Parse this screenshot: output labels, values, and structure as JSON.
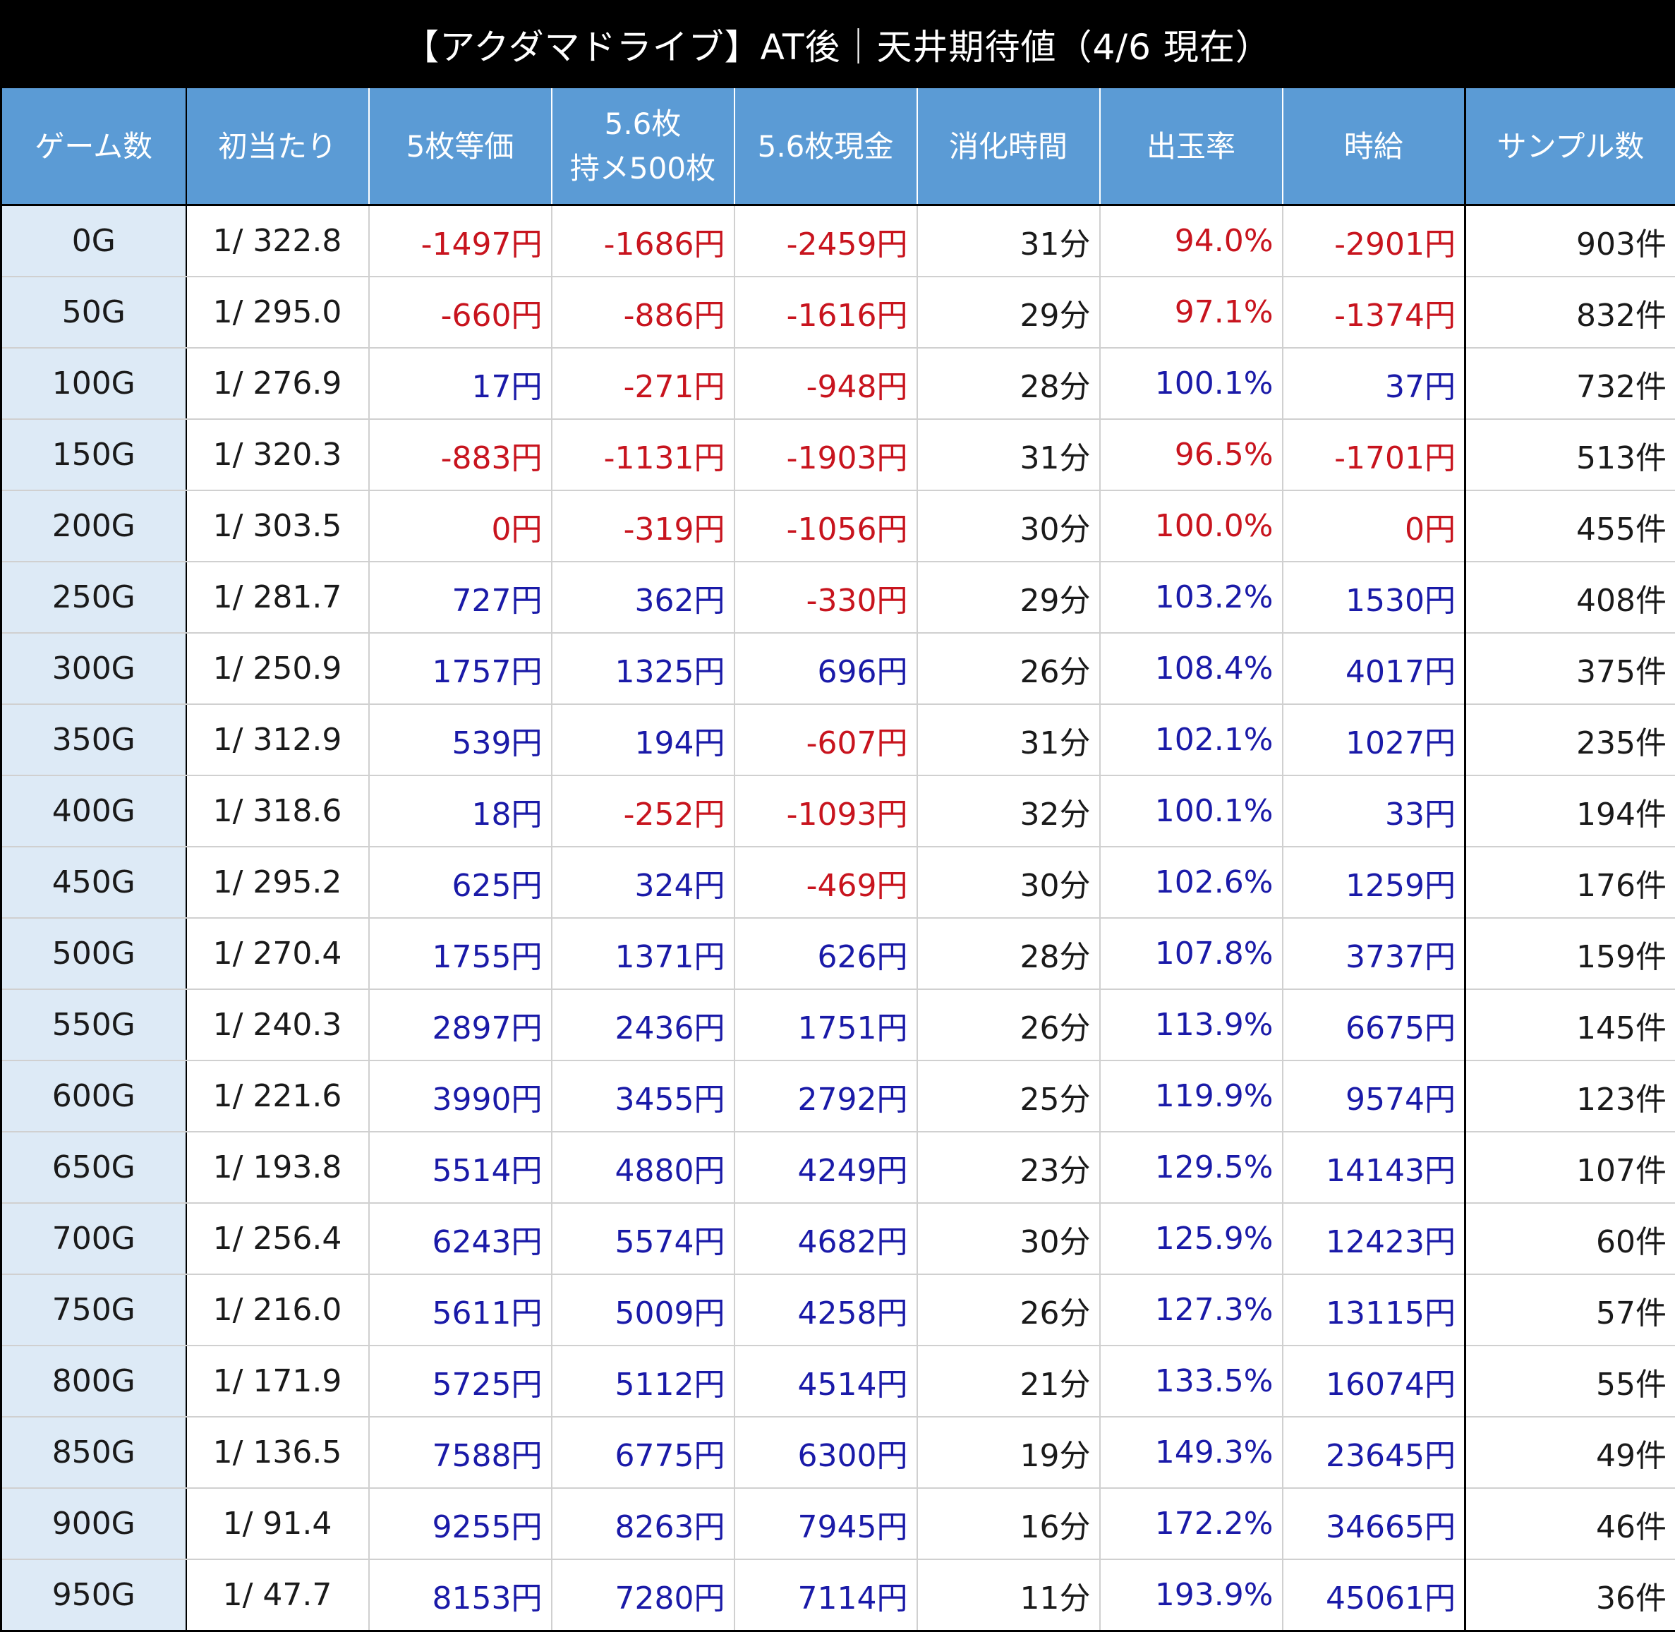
{
  "title": "【アクダマドライブ】AT後｜天井期待値（4/6 現在）",
  "colors": {
    "header_bg": "#5b9bd5",
    "first_col_bg": "#ddeaf6",
    "positive": "#1a1aa8",
    "negative": "#c8141e",
    "title_bg": "#000000"
  },
  "chart_data": {
    "type": "table",
    "title": "【アクダマドライブ】AT後｜天井期待値（4/6 現在）",
    "columns": [
      "ゲーム数",
      "初当たり",
      "5枚等価",
      "5.6枚\n持メ500枚",
      "5.6枚現金",
      "消化時間",
      "出玉率",
      "時給",
      "サンプル数"
    ],
    "rows": [
      {
        "games": "0G",
        "first_hit": "1/ 322.8",
        "eq5": "-1497円",
        "m56_500": "-1686円",
        "cash56": "-2459円",
        "time": "31分",
        "payout": "94.0%",
        "hourly": "-2901円",
        "samples": "903件",
        "c": [
          "neg",
          "neg",
          "neg",
          "neg",
          "neg"
        ]
      },
      {
        "games": "50G",
        "first_hit": "1/ 295.0",
        "eq5": "-660円",
        "m56_500": "-886円",
        "cash56": "-1616円",
        "time": "29分",
        "payout": "97.1%",
        "hourly": "-1374円",
        "samples": "832件",
        "c": [
          "neg",
          "neg",
          "neg",
          "neg",
          "neg"
        ]
      },
      {
        "games": "100G",
        "first_hit": "1/ 276.9",
        "eq5": "17円",
        "m56_500": "-271円",
        "cash56": "-948円",
        "time": "28分",
        "payout": "100.1%",
        "hourly": "37円",
        "samples": "732件",
        "c": [
          "pos",
          "neg",
          "neg",
          "pos",
          "pos"
        ]
      },
      {
        "games": "150G",
        "first_hit": "1/ 320.3",
        "eq5": "-883円",
        "m56_500": "-1131円",
        "cash56": "-1903円",
        "time": "31分",
        "payout": "96.5%",
        "hourly": "-1701円",
        "samples": "513件",
        "c": [
          "neg",
          "neg",
          "neg",
          "neg",
          "neg"
        ]
      },
      {
        "games": "200G",
        "first_hit": "1/ 303.5",
        "eq5": "0円",
        "m56_500": "-319円",
        "cash56": "-1056円",
        "time": "30分",
        "payout": "100.0%",
        "hourly": "0円",
        "samples": "455件",
        "c": [
          "neg",
          "neg",
          "neg",
          "neg",
          "neg"
        ]
      },
      {
        "games": "250G",
        "first_hit": "1/ 281.7",
        "eq5": "727円",
        "m56_500": "362円",
        "cash56": "-330円",
        "time": "29分",
        "payout": "103.2%",
        "hourly": "1530円",
        "samples": "408件",
        "c": [
          "pos",
          "pos",
          "neg",
          "pos",
          "pos"
        ]
      },
      {
        "games": "300G",
        "first_hit": "1/ 250.9",
        "eq5": "1757円",
        "m56_500": "1325円",
        "cash56": "696円",
        "time": "26分",
        "payout": "108.4%",
        "hourly": "4017円",
        "samples": "375件",
        "c": [
          "pos",
          "pos",
          "pos",
          "pos",
          "pos"
        ]
      },
      {
        "games": "350G",
        "first_hit": "1/ 312.9",
        "eq5": "539円",
        "m56_500": "194円",
        "cash56": "-607円",
        "time": "31分",
        "payout": "102.1%",
        "hourly": "1027円",
        "samples": "235件",
        "c": [
          "pos",
          "pos",
          "neg",
          "pos",
          "pos"
        ]
      },
      {
        "games": "400G",
        "first_hit": "1/ 318.6",
        "eq5": "18円",
        "m56_500": "-252円",
        "cash56": "-1093円",
        "time": "32分",
        "payout": "100.1%",
        "hourly": "33円",
        "samples": "194件",
        "c": [
          "pos",
          "neg",
          "neg",
          "pos",
          "pos"
        ]
      },
      {
        "games": "450G",
        "first_hit": "1/ 295.2",
        "eq5": "625円",
        "m56_500": "324円",
        "cash56": "-469円",
        "time": "30分",
        "payout": "102.6%",
        "hourly": "1259円",
        "samples": "176件",
        "c": [
          "pos",
          "pos",
          "neg",
          "pos",
          "pos"
        ]
      },
      {
        "games": "500G",
        "first_hit": "1/ 270.4",
        "eq5": "1755円",
        "m56_500": "1371円",
        "cash56": "626円",
        "time": "28分",
        "payout": "107.8%",
        "hourly": "3737円",
        "samples": "159件",
        "c": [
          "pos",
          "pos",
          "pos",
          "pos",
          "pos"
        ]
      },
      {
        "games": "550G",
        "first_hit": "1/ 240.3",
        "eq5": "2897円",
        "m56_500": "2436円",
        "cash56": "1751円",
        "time": "26分",
        "payout": "113.9%",
        "hourly": "6675円",
        "samples": "145件",
        "c": [
          "pos",
          "pos",
          "pos",
          "pos",
          "pos"
        ]
      },
      {
        "games": "600G",
        "first_hit": "1/ 221.6",
        "eq5": "3990円",
        "m56_500": "3455円",
        "cash56": "2792円",
        "time": "25分",
        "payout": "119.9%",
        "hourly": "9574円",
        "samples": "123件",
        "c": [
          "pos",
          "pos",
          "pos",
          "pos",
          "pos"
        ]
      },
      {
        "games": "650G",
        "first_hit": "1/ 193.8",
        "eq5": "5514円",
        "m56_500": "4880円",
        "cash56": "4249円",
        "time": "23分",
        "payout": "129.5%",
        "hourly": "14143円",
        "samples": "107件",
        "c": [
          "pos",
          "pos",
          "pos",
          "pos",
          "pos"
        ]
      },
      {
        "games": "700G",
        "first_hit": "1/ 256.4",
        "eq5": "6243円",
        "m56_500": "5574円",
        "cash56": "4682円",
        "time": "30分",
        "payout": "125.9%",
        "hourly": "12423円",
        "samples": "60件",
        "c": [
          "pos",
          "pos",
          "pos",
          "pos",
          "pos"
        ]
      },
      {
        "games": "750G",
        "first_hit": "1/ 216.0",
        "eq5": "5611円",
        "m56_500": "5009円",
        "cash56": "4258円",
        "time": "26分",
        "payout": "127.3%",
        "hourly": "13115円",
        "samples": "57件",
        "c": [
          "pos",
          "pos",
          "pos",
          "pos",
          "pos"
        ]
      },
      {
        "games": "800G",
        "first_hit": "1/ 171.9",
        "eq5": "5725円",
        "m56_500": "5112円",
        "cash56": "4514円",
        "time": "21分",
        "payout": "133.5%",
        "hourly": "16074円",
        "samples": "55件",
        "c": [
          "pos",
          "pos",
          "pos",
          "pos",
          "pos"
        ]
      },
      {
        "games": "850G",
        "first_hit": "1/ 136.5",
        "eq5": "7588円",
        "m56_500": "6775円",
        "cash56": "6300円",
        "time": "19分",
        "payout": "149.3%",
        "hourly": "23645円",
        "samples": "49件",
        "c": [
          "pos",
          "pos",
          "pos",
          "pos",
          "pos"
        ]
      },
      {
        "games": "900G",
        "first_hit": "1/ 91.4",
        "eq5": "9255円",
        "m56_500": "8263円",
        "cash56": "7945円",
        "time": "16分",
        "payout": "172.2%",
        "hourly": "34665円",
        "samples": "46件",
        "c": [
          "pos",
          "pos",
          "pos",
          "pos",
          "pos"
        ]
      },
      {
        "games": "950G",
        "first_hit": "1/ 47.7",
        "eq5": "8153円",
        "m56_500": "7280円",
        "cash56": "7114円",
        "time": "11分",
        "payout": "193.9%",
        "hourly": "45061円",
        "samples": "36件",
        "c": [
          "pos",
          "pos",
          "pos",
          "pos",
          "pos"
        ]
      }
    ]
  }
}
